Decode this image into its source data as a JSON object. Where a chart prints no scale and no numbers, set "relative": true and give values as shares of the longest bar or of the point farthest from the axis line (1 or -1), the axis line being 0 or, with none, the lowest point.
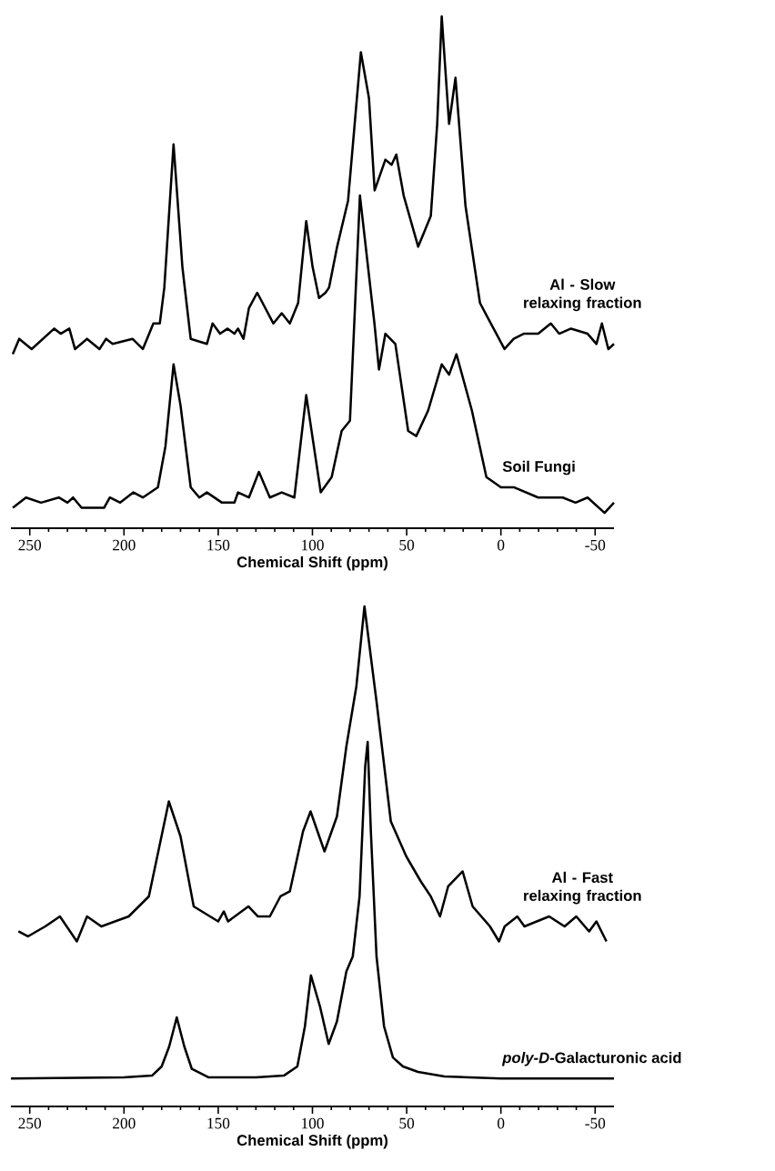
{
  "chart_data": [
    {
      "type": "line",
      "relative": true,
      "xlabel": "Chemical Shift (ppm)",
      "xlim": [
        260,
        -60
      ],
      "xticks": [
        250,
        {
          "value": 240,
          "label": null
        },
        {
          "value": 230,
          "label": null
        },
        {
          "value": 220,
          "label": null
        },
        {
          "value": 210,
          "label": null
        },
        200,
        {
          "value": 190,
          "label": null
        },
        {
          "value": 180,
          "label": null
        },
        {
          "value": 170,
          "label": null
        },
        {
          "value": 160,
          "label": null
        },
        150,
        {
          "value": 140,
          "label": null
        },
        {
          "value": 130,
          "label": null
        },
        {
          "value": 120,
          "label": null
        },
        {
          "value": 110,
          "label": null
        },
        100,
        {
          "value": 90,
          "label": null
        },
        {
          "value": 80,
          "label": null
        },
        {
          "value": 70,
          "label": null
        },
        {
          "value": 60,
          "label": null
        },
        50,
        {
          "value": 40,
          "label": null
        },
        {
          "value": 30,
          "label": null
        },
        {
          "value": 20,
          "label": null
        },
        {
          "value": 10,
          "label": null
        },
        0,
        {
          "value": -10,
          "label": null
        },
        {
          "value": -20,
          "label": null
        },
        {
          "value": -30,
          "label": null
        },
        {
          "value": -40,
          "label": null
        },
        -50
      ],
      "series": [
        {
          "name": "Al - Slow relaxing fraction",
          "color": "#000000",
          "x": [
            259,
            255.6,
            249,
            237,
            233.6,
            229,
            226,
            219.6,
            213,
            209.5,
            206,
            195.5,
            190,
            184.4,
            181,
            178.6,
            173.7,
            169,
            164.6,
            156,
            153,
            149,
            145,
            141.4,
            139.5,
            136.6,
            133.7,
            129.3,
            120.7,
            116.3,
            112,
            107.6,
            103.3,
            99.9,
            96.5,
            93.1,
            91.2,
            86.9,
            81.1,
            74.3,
            70,
            67,
            61.3,
            58,
            55.5,
            51.6,
            43.9,
            37.2,
            33.8,
            31.4,
            27.5,
            24.1,
            18.8,
            11.1,
            6.8,
            2.4,
            -1.9,
            -6.8,
            -12.1,
            -19.8,
            -26.5,
            -30.9,
            -37.2,
            -46,
            -50.7,
            -53.6,
            -57,
            -60
          ],
          "values": [
            0.34,
            0.37,
            0.35,
            0.39,
            0.38,
            0.39,
            0.35,
            0.37,
            0.35,
            0.37,
            0.36,
            0.37,
            0.35,
            0.4,
            0.4,
            0.47,
            0.75,
            0.51,
            0.37,
            0.36,
            0.4,
            0.38,
            0.39,
            0.38,
            0.39,
            0.37,
            0.43,
            0.46,
            0.4,
            0.42,
            0.4,
            0.44,
            0.6,
            0.51,
            0.45,
            0.46,
            0.47,
            0.55,
            0.64,
            0.93,
            0.84,
            0.66,
            0.72,
            0.71,
            0.73,
            0.65,
            0.55,
            0.61,
            0.79,
            1.0,
            0.79,
            0.88,
            0.63,
            0.44,
            0.41,
            0.38,
            0.35,
            0.37,
            0.38,
            0.38,
            0.4,
            0.38,
            0.39,
            0.38,
            0.36,
            0.4,
            0.35,
            0.36
          ]
        },
        {
          "name": "Soil Fungi",
          "color": "#000000",
          "x": [
            259,
            252,
            244,
            234.6,
            230,
            227,
            222.5,
            216,
            210.5,
            207.5,
            202,
            195,
            190,
            182,
            178,
            173.7,
            170,
            164.6,
            160,
            156,
            148,
            141.4,
            139.5,
            133.7,
            128.4,
            122.6,
            116.3,
            109.6,
            103.3,
            95.6,
            89.8,
            84.5,
            80.1,
            74.8,
            67.1,
            64.7,
            61.3,
            56,
            49.2,
            44.9,
            38.6,
            31.4,
            27.5,
            23.6,
            15.4,
            7.7,
            0,
            -6.8,
            -19.8,
            -32.8,
            -39.6,
            -46,
            -55,
            -60
          ],
          "values": [
            0.04,
            0.06,
            0.05,
            0.06,
            0.05,
            0.06,
            0.04,
            0.04,
            0.04,
            0.06,
            0.05,
            0.07,
            0.06,
            0.08,
            0.16,
            0.32,
            0.24,
            0.08,
            0.06,
            0.07,
            0.05,
            0.05,
            0.07,
            0.06,
            0.11,
            0.06,
            0.07,
            0.06,
            0.26,
            0.07,
            0.1,
            0.19,
            0.21,
            0.65,
            0.4,
            0.31,
            0.38,
            0.36,
            0.19,
            0.18,
            0.23,
            0.32,
            0.3,
            0.34,
            0.23,
            0.1,
            0.08,
            0.08,
            0.06,
            0.06,
            0.05,
            0.06,
            0.03,
            0.05
          ]
        }
      ]
    },
    {
      "type": "line",
      "relative": true,
      "xlabel": "Chemical Shift (ppm)",
      "xlim": [
        260,
        -60
      ],
      "xticks": [
        250,
        {
          "value": 240,
          "label": null
        },
        {
          "value": 230,
          "label": null
        },
        {
          "value": 220,
          "label": null
        },
        {
          "value": 210,
          "label": null
        },
        200,
        {
          "value": 190,
          "label": null
        },
        {
          "value": 180,
          "label": null
        },
        {
          "value": 170,
          "label": null
        },
        {
          "value": 160,
          "label": null
        },
        150,
        {
          "value": 140,
          "label": null
        },
        {
          "value": 130,
          "label": null
        },
        {
          "value": 120,
          "label": null
        },
        {
          "value": 110,
          "label": null
        },
        100,
        {
          "value": 90,
          "label": null
        },
        {
          "value": 80,
          "label": null
        },
        {
          "value": 70,
          "label": null
        },
        {
          "value": 60,
          "label": null
        },
        50,
        {
          "value": 40,
          "label": null
        },
        {
          "value": 30,
          "label": null
        },
        {
          "value": 20,
          "label": null
        },
        {
          "value": 10,
          "label": null
        },
        0,
        {
          "value": -10,
          "label": null
        },
        {
          "value": -20,
          "label": null
        },
        {
          "value": -30,
          "label": null
        },
        {
          "value": -40,
          "label": null
        },
        -50
      ],
      "series": [
        {
          "name": "Al - Fast relaxing fraction",
          "color": "#000000",
          "x": [
            256,
            251,
            241.8,
            234,
            225,
            219.6,
            212,
            197.5,
            186.8,
            176.2,
            170,
            163,
            150,
            147,
            144.8,
            134,
            129,
            122.6,
            117,
            112,
            105,
            101,
            93.6,
            87,
            82,
            76.7,
            72.4,
            66,
            58.4,
            50.2,
            42.5,
            37.2,
            32.3,
            28,
            20.3,
            15,
            5.8,
            1,
            -2,
            -8.7,
            -12.5,
            -25.6,
            -33.8,
            -40,
            -46.8,
            -50.7,
            -56
          ],
          "values": [
            0.35,
            0.34,
            0.36,
            0.38,
            0.33,
            0.38,
            0.36,
            0.38,
            0.42,
            0.61,
            0.54,
            0.4,
            0.37,
            0.39,
            0.37,
            0.4,
            0.38,
            0.38,
            0.42,
            0.43,
            0.55,
            0.59,
            0.51,
            0.58,
            0.72,
            0.84,
            1.0,
            0.81,
            0.57,
            0.5,
            0.45,
            0.42,
            0.38,
            0.44,
            0.47,
            0.4,
            0.36,
            0.33,
            0.36,
            0.38,
            0.36,
            0.38,
            0.36,
            0.38,
            0.35,
            0.37,
            0.33
          ]
        },
        {
          "name": "*poly-D*-Galacturonic acid",
          "color": "#000000",
          "x": [
            260,
            200,
            185,
            180,
            176,
            172,
            168,
            164,
            155,
            130,
            115,
            108,
            104,
            100.8,
            96,
            91.4,
            87,
            82,
            78.6,
            75,
            72,
            70.7,
            69,
            66,
            62,
            57.3,
            52,
            44,
            30,
            0,
            -60
          ],
          "values": [
            0.056,
            0.058,
            0.062,
            0.08,
            0.12,
            0.178,
            0.12,
            0.075,
            0.058,
            0.058,
            0.062,
            0.08,
            0.16,
            0.262,
            0.2,
            0.125,
            0.17,
            0.27,
            0.3,
            0.42,
            0.68,
            0.729,
            0.55,
            0.3,
            0.16,
            0.098,
            0.08,
            0.069,
            0.06,
            0.056,
            0.056
          ]
        }
      ]
    }
  ]
}
